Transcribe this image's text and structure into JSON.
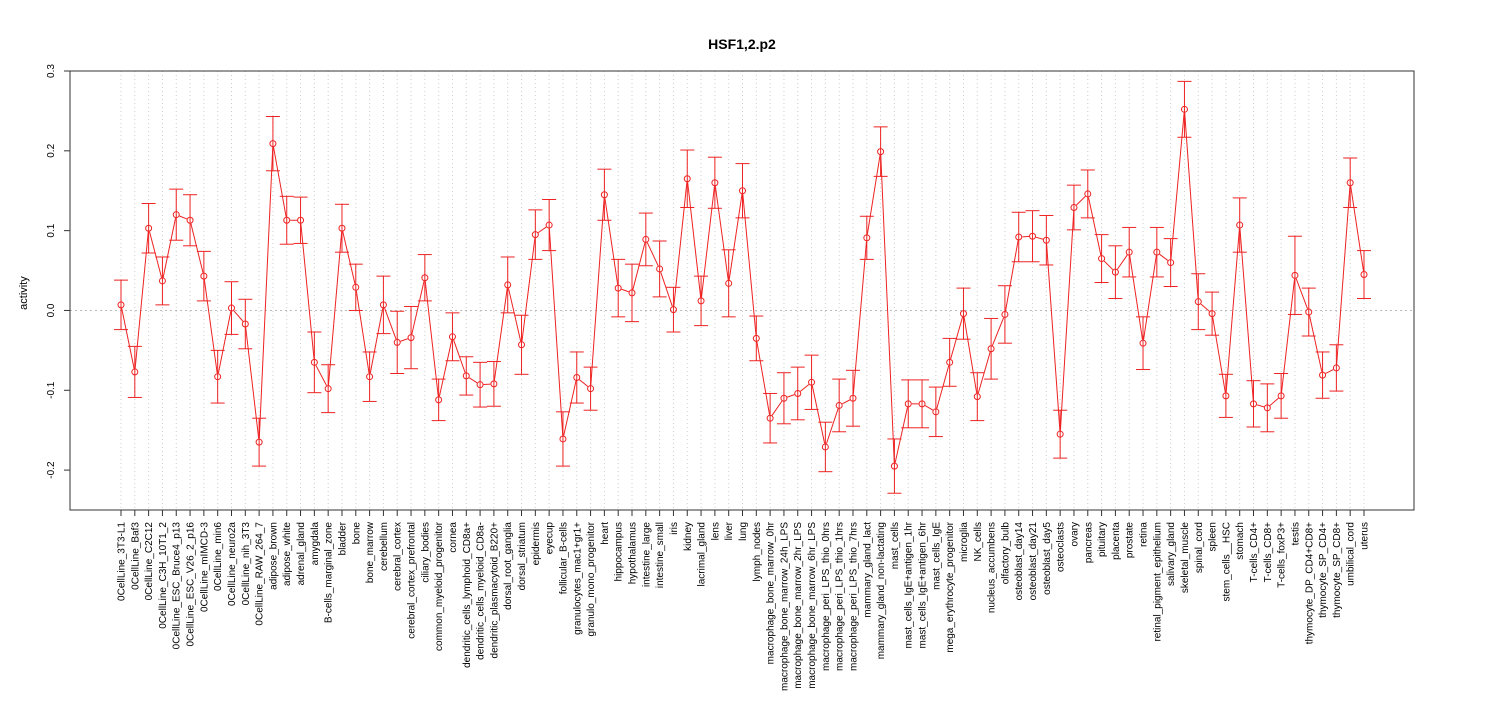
{
  "chart_data": {
    "type": "line",
    "title": "HSF1,2.p2",
    "xlabel": "",
    "ylabel": "activity",
    "ylim": [
      -0.25,
      0.3
    ],
    "yticks": [
      -0.2,
      -0.1,
      0.0,
      0.1,
      0.2,
      0.3
    ],
    "ytick_labels": [
      "-0.2",
      "-0.1",
      "0.0",
      "0.1",
      "0.2",
      "0.3"
    ],
    "grid": true,
    "color": "#ee2222",
    "categories": [
      "0CellLine_3T3-L1",
      "0CellLine_Baf3",
      "0CellLine_C2C12",
      "0CellLine_C3H_10T1_2",
      "0CellLine_ESC_Bruce4_p13",
      "0CellLine_ESC_V26_2_p16",
      "0CellLine_mIMCD-3",
      "0CellLine_min6",
      "0CellLine_neuro2a",
      "0CellLine_nih_3T3",
      "0CellLine_RAW_264_7",
      "adipose_brown",
      "adipose_white",
      "adrenal_gland",
      "amygdala",
      "B-cells_marginal_zone",
      "bladder",
      "bone",
      "bone_marrow",
      "cerebellum",
      "cerebral_cortex",
      "cerebral_cortex_prefrontal",
      "ciliary_bodies",
      "common_myeloid_progenitor",
      "cornea",
      "dendritic_cells_lymphoid_CD8a+",
      "dendritic_cells_myeloid_CD8a-",
      "dendritic_plasmacytoid_B220+",
      "dorsal_root_ganglia",
      "dorsal_striatum",
      "epidermis",
      "eyecup",
      "follicular_B-cells",
      "granulocytes_mac1+gr1+",
      "granulo_mono_progenitor",
      "heart",
      "hippocampus",
      "hypothalamus",
      "intestine_large",
      "intestine_small",
      "iris",
      "kidney",
      "lacrimal_gland",
      "lens",
      "liver",
      "lung",
      "lymph_nodes",
      "macrophage_bone_marrow_0hr",
      "macrophage_bone_marrow_24h_LPS",
      "macrophage_bone_marrow_2hr_LPS",
      "macrophage_bone_marrow_6hr_LPS",
      "macrophage_peri_LPS_thio_0hrs",
      "macrophage_peri_LPS_thio_1hrs",
      "macrophage_peri_LPS_thio_7hrs",
      "mammary_gland_lact",
      "mammary_gland_non-lactating",
      "mast_cells",
      "mast_cells_IgE+antigen_1hr",
      "mast_cells_IgE+antigen_6hr",
      "mast_cells_IgE",
      "mega_erythrocyte_progenitor",
      "microglia",
      "NK_cells",
      "nucleus_accumbens",
      "olfactory_bulb",
      "osteoblast_day14",
      "osteoblast_day21",
      "osteoblast_day5",
      "osteoclasts",
      "ovary",
      "pancreas",
      "pituitary",
      "placenta",
      "prostate",
      "retina",
      "retinal_pigment_epithelium",
      "salivary_gland",
      "skeletal_muscle",
      "spinal_cord",
      "spleen",
      "stem_cells__HSC",
      "stomach",
      "T-cells_CD4+",
      "T-cells_CD8+",
      "T-cells_foxP3+",
      "testis",
      "thymocyte_DP_CD4+CD8+",
      "thymocyte_SP_CD4+",
      "thymocyte_SP_CD8+",
      "umbilical_cord",
      "uterus"
    ],
    "values": [
      0.007,
      -0.077,
      0.103,
      0.037,
      0.12,
      0.113,
      0.043,
      -0.083,
      0.003,
      -0.017,
      -0.165,
      0.209,
      0.113,
      0.113,
      -0.065,
      -0.098,
      0.103,
      0.029,
      -0.083,
      0.007,
      -0.04,
      -0.034,
      0.041,
      -0.112,
      -0.033,
      -0.082,
      -0.093,
      -0.092,
      0.032,
      -0.043,
      0.095,
      0.107,
      -0.161,
      -0.084,
      -0.098,
      0.145,
      0.028,
      0.022,
      0.089,
      0.052,
      0.001,
      0.165,
      0.012,
      0.16,
      0.034,
      0.15,
      -0.035,
      -0.135,
      -0.11,
      -0.104,
      -0.09,
      -0.171,
      -0.119,
      -0.11,
      0.091,
      0.199,
      -0.195,
      -0.117,
      -0.117,
      -0.127,
      -0.065,
      -0.004,
      -0.108,
      -0.048,
      -0.005,
      0.092,
      0.093,
      0.088,
      -0.155,
      0.129,
      0.146,
      0.065,
      0.048,
      0.073,
      -0.041,
      0.073,
      0.06,
      0.252,
      0.011,
      -0.004,
      -0.107,
      0.107,
      -0.117,
      -0.122,
      -0.107,
      0.044,
      -0.002,
      -0.081,
      -0.072,
      0.16,
      0.045
    ],
    "errors": [
      0.031,
      0.032,
      0.031,
      0.03,
      0.032,
      0.032,
      0.031,
      0.033,
      0.033,
      0.031,
      0.03,
      0.034,
      0.03,
      0.029,
      0.038,
      0.03,
      0.03,
      0.029,
      0.031,
      0.036,
      0.039,
      0.039,
      0.029,
      0.026,
      0.03,
      0.024,
      0.028,
      0.028,
      0.035,
      0.037,
      0.031,
      0.032,
      0.034,
      0.032,
      0.027,
      0.032,
      0.036,
      0.036,
      0.033,
      0.035,
      0.028,
      0.036,
      0.031,
      0.032,
      0.042,
      0.034,
      0.028,
      0.031,
      0.032,
      0.033,
      0.034,
      0.031,
      0.033,
      0.035,
      0.027,
      0.031,
      0.034,
      0.03,
      0.03,
      0.031,
      0.03,
      0.032,
      0.03,
      0.038,
      0.036,
      0.031,
      0.032,
      0.031,
      0.03,
      0.028,
      0.03,
      0.03,
      0.033,
      0.031,
      0.033,
      0.031,
      0.03,
      0.035,
      0.035,
      0.027,
      0.027,
      0.034,
      0.029,
      0.03,
      0.028,
      0.049,
      0.03,
      0.029,
      0.029,
      0.031,
      0.03
    ]
  }
}
